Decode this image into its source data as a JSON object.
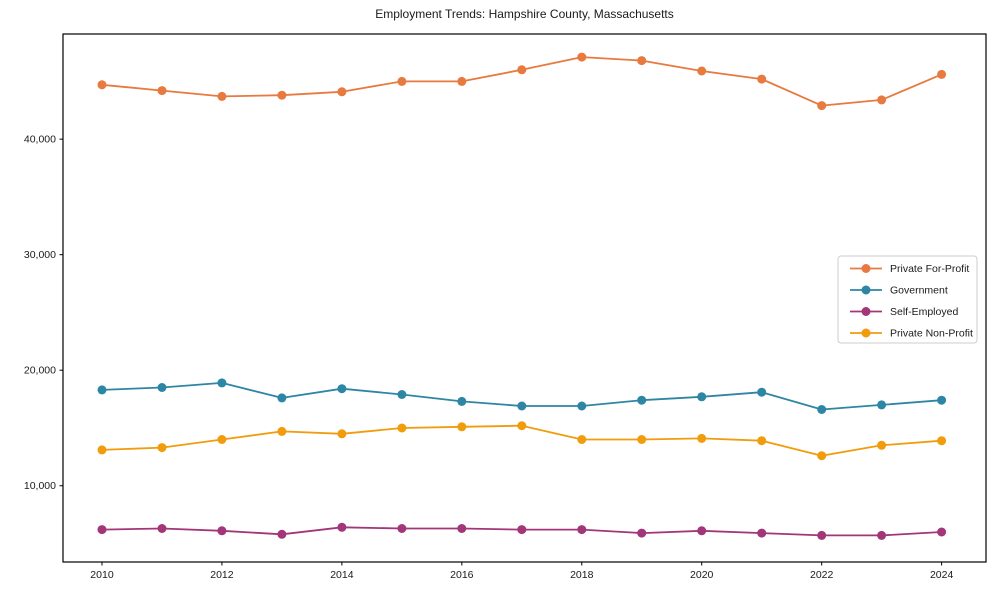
{
  "chart_data": {
    "type": "line",
    "title": "Employment Trends: Hampshire County, Massachusetts",
    "xlabel": "",
    "ylabel": "",
    "x": [
      2010,
      2011,
      2012,
      2013,
      2014,
      2015,
      2016,
      2017,
      2018,
      2019,
      2020,
      2021,
      2022,
      2023,
      2024
    ],
    "series": [
      {
        "name": "Private For-Profit",
        "color": "#e8793f",
        "values": [
          44700,
          44200,
          43700,
          43800,
          44100,
          45000,
          45000,
          46000,
          47100,
          46800,
          45900,
          45200,
          42900,
          43400,
          45600
        ]
      },
      {
        "name": "Government",
        "color": "#2e86a5",
        "values": [
          18300,
          18500,
          18900,
          17600,
          18400,
          17900,
          17300,
          16900,
          16900,
          17400,
          17700,
          18100,
          16600,
          17000,
          17400
        ]
      },
      {
        "name": "Self-Employed",
        "color": "#a23678",
        "values": [
          6200,
          6300,
          6100,
          5800,
          6400,
          6300,
          6300,
          6200,
          6200,
          5900,
          6100,
          5900,
          5700,
          5700,
          6000
        ]
      },
      {
        "name": "Private Non-Profit",
        "color": "#f19c0c",
        "values": [
          13100,
          13300,
          14000,
          14700,
          14500,
          15000,
          15100,
          15200,
          14000,
          14000,
          14100,
          13900,
          12600,
          13500,
          13900
        ]
      }
    ],
    "xticks": [
      2010,
      2012,
      2014,
      2016,
      2018,
      2020,
      2022,
      2024
    ],
    "yticks": [
      10000,
      20000,
      30000,
      40000
    ],
    "ytick_labels": [
      "10,000",
      "20,000",
      "30,000",
      "40,000"
    ],
    "xlim": [
      2009.35,
      2024.74
    ],
    "ylim": [
      3400,
      49100
    ],
    "grid": false,
    "legend_position": "center right",
    "marker": "circle",
    "axis_color": "#000000",
    "background_color": "#ffffff"
  }
}
